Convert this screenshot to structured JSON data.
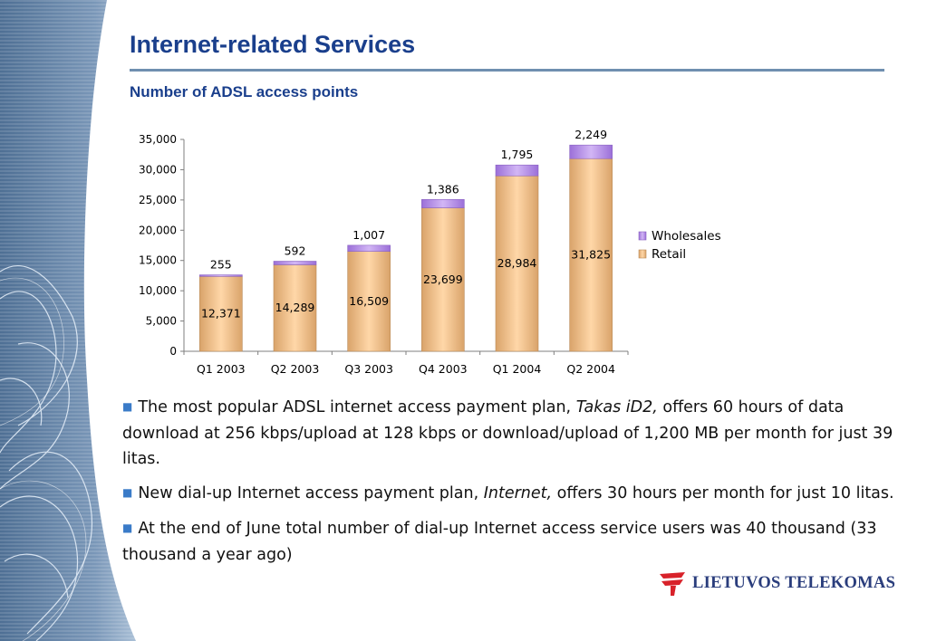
{
  "slide": {
    "title": "Internet-related Services",
    "subtitle": "Number of ADSL access points"
  },
  "chart_data": {
    "type": "bar",
    "stacked": true,
    "categories": [
      "Q1 2003",
      "Q2 2003",
      "Q3 2003",
      "Q4 2003",
      "Q1 2004",
      "Q2 2004"
    ],
    "series": [
      {
        "name": "Retail",
        "values": [
          12371,
          14289,
          16509,
          23699,
          28984,
          31825
        ],
        "color": "#f4c28c"
      },
      {
        "name": "Wholesales",
        "values": [
          255,
          592,
          1007,
          1386,
          1795,
          2249
        ],
        "color": "#b58ee6"
      }
    ],
    "value_labels": {
      "Retail": [
        "12,371",
        "14,289",
        "16,509",
        "23,699",
        "28,984",
        "31,825"
      ],
      "Wholesales": [
        "255",
        "592",
        "1,007",
        "1,386",
        "1,795",
        "2,249"
      ]
    },
    "y_ticks": [
      "0",
      "5,000",
      "10,000",
      "15,000",
      "20,000",
      "25,000",
      "30,000",
      "35,000"
    ],
    "ylim": [
      0,
      35000
    ],
    "legend_position": "right",
    "legend_order": [
      "Wholesales",
      "Retail"
    ],
    "grid": false
  },
  "bullets": [
    {
      "before": "The most popular ADSL internet access payment plan, ",
      "italic": "Takas iD2,",
      "after": " offers 60 hours of data download at 256 kbps/upload at 128 kbps or download/upload of 1,200 MB per month for just 39 litas."
    },
    {
      "before": "New dial-up Internet access payment plan, ",
      "italic": "Internet,",
      "after": " offers 30 hours per month for just 10 litas."
    },
    {
      "before": "At the end of June total number of dial-up Internet access service users was 40 thousand (33 thousand a year ago)",
      "italic": "",
      "after": ""
    }
  ],
  "logo": {
    "text": "LIETUVOS  TELEKOMAS"
  },
  "colors": {
    "title": "#1a3f8c",
    "accent": "#3a7bc8",
    "logo": "#2a3d7c",
    "logo_red": "#d8222a"
  }
}
